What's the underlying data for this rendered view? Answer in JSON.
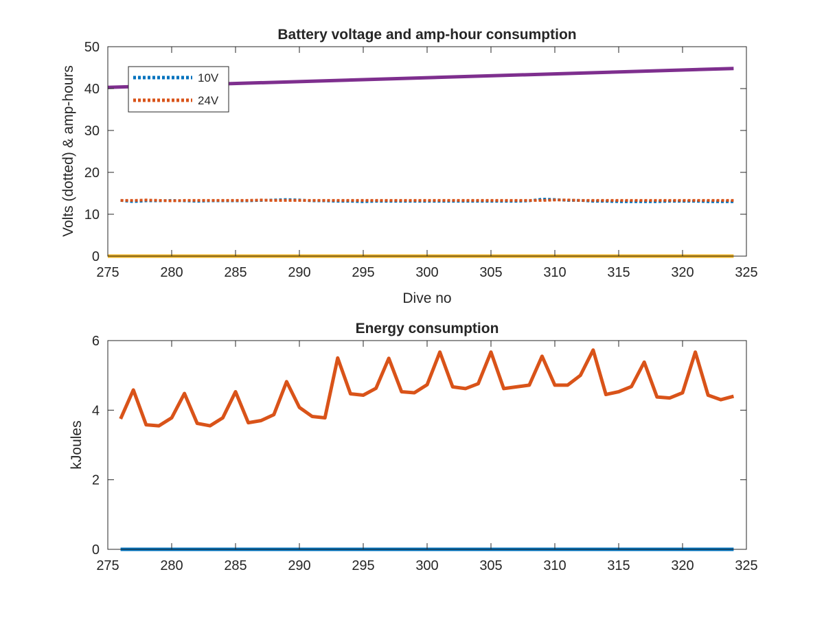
{
  "chart_data": [
    {
      "type": "line",
      "title": "Battery voltage and amp-hour consumption",
      "xlabel": "Dive no",
      "ylabel": "Volts (dotted) & amp-hours",
      "xlim": [
        275,
        325
      ],
      "ylim": [
        0,
        50
      ],
      "xticks": [
        "275",
        "280",
        "285",
        "290",
        "295",
        "300",
        "305",
        "310",
        "315",
        "320",
        "325"
      ],
      "yticks": [
        "0",
        "10",
        "20",
        "30",
        "40",
        "50"
      ],
      "legend_position": "top-left",
      "series": [
        {
          "name": "10V",
          "style": "dotted",
          "color": "#0072BD",
          "x": [
            276,
            277,
            278,
            279,
            280,
            281,
            282,
            283,
            284,
            285,
            286,
            287,
            288,
            289,
            290,
            291,
            292,
            293,
            294,
            295,
            296,
            297,
            298,
            299,
            300,
            301,
            302,
            303,
            304,
            305,
            306,
            307,
            308,
            309,
            310,
            311,
            312,
            313,
            314,
            315,
            316,
            317,
            318,
            319,
            320,
            321,
            322,
            323,
            324
          ],
          "y": [
            13.3,
            13.0,
            13.2,
            13.2,
            13.3,
            13.2,
            13.1,
            13.2,
            13.2,
            13.2,
            13.2,
            13.3,
            13.4,
            13.5,
            13.4,
            13.2,
            13.2,
            13.1,
            13.1,
            13.0,
            13.1,
            13.1,
            13.1,
            13.1,
            13.1,
            13.1,
            13.1,
            13.1,
            13.1,
            13.1,
            13.1,
            13.1,
            13.2,
            13.6,
            13.5,
            13.3,
            13.3,
            13.1,
            13.1,
            13.0,
            13.0,
            13.0,
            13.0,
            13.1,
            13.1,
            13.1,
            13.0,
            13.0,
            13.0
          ]
        },
        {
          "name": "24V",
          "style": "dotted",
          "color": "#D95319",
          "x": [
            276,
            277,
            278,
            279,
            280,
            281,
            282,
            283,
            284,
            285,
            286,
            287,
            288,
            289,
            290,
            291,
            292,
            293,
            294,
            295,
            296,
            297,
            298,
            299,
            300,
            301,
            302,
            303,
            304,
            305,
            306,
            307,
            308,
            309,
            310,
            311,
            312,
            313,
            314,
            315,
            316,
            317,
            318,
            319,
            320,
            321,
            322,
            323,
            324
          ],
          "y": [
            13.3,
            13.3,
            13.4,
            13.3,
            13.2,
            13.3,
            13.3,
            13.3,
            13.3,
            13.3,
            13.3,
            13.4,
            13.3,
            13.3,
            13.3,
            13.3,
            13.3,
            13.3,
            13.3,
            13.3,
            13.3,
            13.3,
            13.3,
            13.3,
            13.3,
            13.3,
            13.3,
            13.3,
            13.3,
            13.3,
            13.3,
            13.3,
            13.3,
            13.3,
            13.4,
            13.4,
            13.3,
            13.3,
            13.3,
            13.3,
            13.3,
            13.3,
            13.3,
            13.3,
            13.3,
            13.3,
            13.3,
            13.3,
            13.3
          ]
        },
        {
          "style": "solid",
          "color": "#7E2F8E",
          "x": [
            275,
            324
          ],
          "y": [
            40.3,
            44.8
          ]
        },
        {
          "style": "solid",
          "color": "#EDB120",
          "x": [
            275,
            324
          ],
          "y": [
            0,
            0
          ]
        }
      ]
    },
    {
      "type": "line",
      "title": "Energy consumption",
      "xlabel": "",
      "ylabel": "kJoules",
      "xlim": [
        275,
        325
      ],
      "ylim": [
        0,
        6
      ],
      "xticks": [
        "275",
        "280",
        "285",
        "290",
        "295",
        "300",
        "305",
        "310",
        "315",
        "320",
        "325"
      ],
      "yticks": [
        "0",
        "2",
        "4",
        "6"
      ],
      "series": [
        {
          "style": "solid",
          "color": "#0072BD",
          "x": [
            276,
            324
          ],
          "y": [
            0,
            0
          ]
        },
        {
          "style": "solid",
          "color": "#D95319",
          "x": [
            276,
            277,
            278,
            279,
            280,
            281,
            282,
            283,
            284,
            285,
            286,
            287,
            288,
            289,
            290,
            291,
            292,
            293,
            294,
            295,
            296,
            297,
            298,
            299,
            300,
            301,
            302,
            303,
            304,
            305,
            306,
            307,
            308,
            309,
            310,
            311,
            312,
            313,
            314,
            315,
            316,
            317,
            318,
            319,
            320,
            321,
            322,
            323,
            324
          ],
          "y": [
            3.75,
            4.58,
            3.58,
            3.55,
            3.78,
            4.48,
            3.62,
            3.55,
            3.78,
            4.53,
            3.64,
            3.7,
            3.87,
            4.82,
            4.08,
            3.82,
            3.78,
            5.5,
            4.47,
            4.43,
            4.63,
            5.49,
            4.53,
            4.5,
            4.73,
            5.67,
            4.67,
            4.62,
            4.76,
            5.67,
            4.62,
            4.67,
            4.72,
            5.55,
            4.72,
            4.72,
            5.0,
            5.73,
            4.45,
            4.53,
            4.68,
            5.38,
            4.38,
            4.35,
            4.5,
            5.67,
            4.43,
            4.3,
            4.4
          ]
        }
      ]
    }
  ]
}
